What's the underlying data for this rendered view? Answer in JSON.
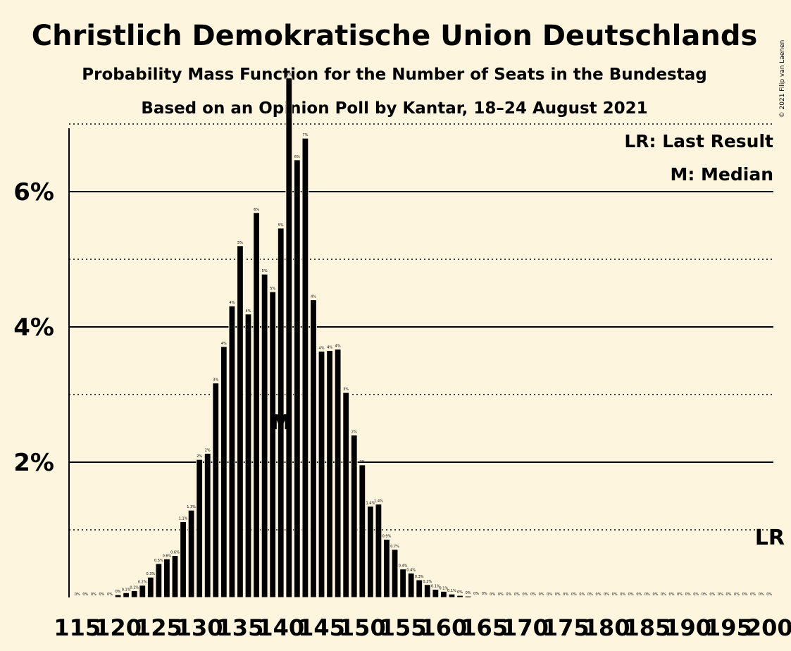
{
  "chart_data": {
    "type": "bar",
    "title": "Christlich Demokratische Union Deutschlands",
    "subtitle": "Probability Mass Function for the Number of Seats in the Bundestag",
    "source": "Based on an Opinion Poll by Kantar, 18–24 August 2021",
    "copyright": "© 2021 Filip van Laenen",
    "legend": {
      "position": "top-right",
      "items": [
        "LR: Last Result",
        "M: Median"
      ]
    },
    "xlabel": "",
    "ylabel": "",
    "xlim": [
      115,
      200
    ],
    "ylim": [
      0,
      8
    ],
    "y_ticks": [
      {
        "value": 2,
        "label": "2%"
      },
      {
        "value": 4,
        "label": "4%"
      },
      {
        "value": 6,
        "label": "6%"
      }
    ],
    "y_minor_gridlines": [
      1,
      3,
      5,
      7
    ],
    "x_ticks": [
      115,
      120,
      125,
      130,
      135,
      140,
      145,
      150,
      155,
      160,
      165,
      170,
      175,
      180,
      185,
      190,
      195,
      200
    ],
    "median": {
      "seats": 140,
      "marker": "M"
    },
    "last_result": {
      "seats": 200,
      "marker": "LR"
    },
    "seats": [
      115,
      116,
      117,
      118,
      119,
      120,
      121,
      122,
      123,
      124,
      125,
      126,
      127,
      128,
      129,
      130,
      131,
      132,
      133,
      134,
      135,
      136,
      137,
      138,
      139,
      140,
      141,
      142,
      143,
      144,
      145,
      146,
      147,
      148,
      149,
      150,
      151,
      152,
      153,
      154,
      155,
      156,
      157,
      158,
      159,
      160,
      161,
      162,
      163,
      164,
      165,
      166,
      167,
      168,
      169,
      170,
      171,
      172,
      173,
      174,
      175,
      176,
      177,
      178,
      179,
      180,
      181,
      182,
      183,
      184,
      185,
      186,
      187,
      188,
      189,
      190,
      191,
      192,
      193,
      194,
      195,
      196,
      197,
      198,
      199,
      200
    ],
    "values": [
      0.0,
      0.0,
      0.0,
      0.0,
      0.0,
      0.04,
      0.07,
      0.1,
      0.18,
      0.3,
      0.5,
      0.57,
      0.62,
      1.12,
      1.29,
      2.04,
      2.13,
      3.17,
      3.71,
      4.31,
      5.2,
      4.19,
      5.69,
      4.78,
      4.52,
      5.46,
      7.68,
      6.47,
      6.79,
      4.4,
      3.64,
      3.65,
      3.67,
      3.03,
      2.4,
      1.96,
      1.35,
      1.38,
      0.86,
      0.71,
      0.42,
      0.36,
      0.26,
      0.19,
      0.12,
      0.09,
      0.05,
      0.03,
      0.02,
      0.01,
      0.01,
      0.0,
      0.0,
      0.0,
      0.0,
      0.0,
      0.0,
      0.0,
      0.0,
      0.0,
      0.0,
      0.0,
      0.0,
      0.0,
      0.0,
      0.0,
      0.0,
      0.0,
      0.0,
      0.0,
      0.0,
      0.0,
      0.0,
      0.0,
      0.0,
      0.0,
      0.0,
      0.0,
      0.0,
      0.0,
      0.0,
      0.0,
      0.0,
      0.0,
      0.0,
      0.0
    ],
    "data_labels": [
      "0%",
      "0%",
      "0%",
      "0%",
      "0%",
      "0%",
      "0.1%",
      "0.1%",
      "0.2%",
      "0.3%",
      "0.5%",
      "0.6%",
      "0.6%",
      "1.1%",
      "1.3%",
      "2%",
      "2%",
      "3%",
      "4%",
      "4%",
      "5%",
      "4%",
      "6%",
      "5%",
      "5%",
      "5%",
      "8%",
      "6%",
      "7%",
      "4%",
      "4%",
      "4%",
      "4%",
      "3%",
      "2%",
      "2%",
      "1.4%",
      "1.4%",
      "0.9%",
      "0.7%",
      "0.4%",
      "0.4%",
      "0.3%",
      "0.2%",
      "0.1%",
      "0.1%",
      "0.1%",
      "0%",
      "0%",
      "0%",
      "0%",
      "0%",
      "0%",
      "0%",
      "0%",
      "0%",
      "0%",
      "0%",
      "0%",
      "0%",
      "0%",
      "0%",
      "0%",
      "0%",
      "0%",
      "0%",
      "0%",
      "0%",
      "0%",
      "0%",
      "0%",
      "0%",
      "0%",
      "0%",
      "0%",
      "0%",
      "0%",
      "0%",
      "0%",
      "0%",
      "0%",
      "0%",
      "0%",
      "0%",
      "0%",
      "0%"
    ]
  },
  "colors": {
    "background": "#fdf5dd",
    "bar": "#000000",
    "grid": "#000000",
    "median_marker": "#fdf5dd"
  }
}
